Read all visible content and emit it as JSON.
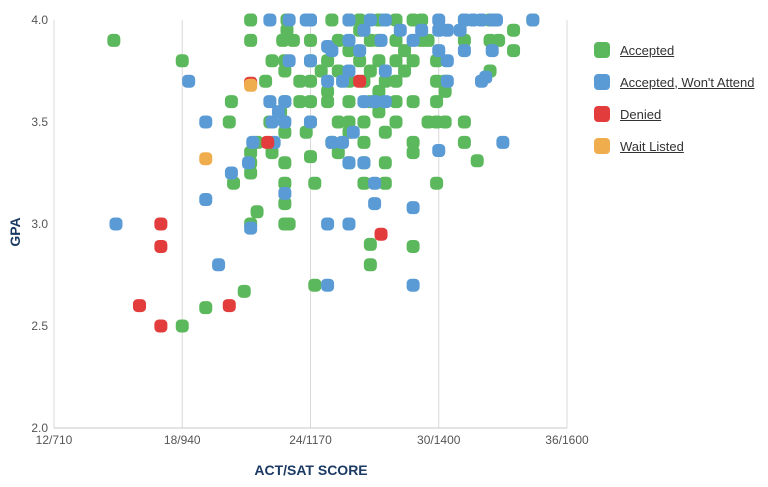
{
  "chart_data": {
    "type": "scatter",
    "title": "",
    "xlabel": "ACT/SAT SCORE",
    "ylabel": "GPA",
    "x_tick_labels": [
      "12/710",
      "18/940",
      "24/1170",
      "30/1400",
      "36/1600"
    ],
    "x_ticks_act": [
      12,
      18,
      24,
      30,
      36
    ],
    "y_tick_labels": [
      "2.0",
      "2.5",
      "3.0",
      "3.5",
      "4.0"
    ],
    "y_ticks": [
      2.0,
      2.5,
      3.0,
      3.5,
      4.0
    ],
    "xlim_act": [
      12,
      36
    ],
    "ylim": [
      2.0,
      4.0
    ],
    "grid": "vertical",
    "legend_position": "right",
    "series": [
      {
        "name": "Accepted",
        "color": "#5cb85c",
        "points": [
          [
            14.8,
            3.9
          ],
          [
            18,
            3.8
          ],
          [
            18,
            2.5
          ],
          [
            19.1,
            2.59
          ],
          [
            20.3,
            3.6
          ],
          [
            20.2,
            3.5
          ],
          [
            20.4,
            3.2
          ],
          [
            20.9,
            2.67
          ],
          [
            21.2,
            3.35
          ],
          [
            21.2,
            3.3
          ],
          [
            21.2,
            3.0
          ],
          [
            21.5,
            3.06
          ],
          [
            21.2,
            3.9
          ],
          [
            21.2,
            4.0
          ],
          [
            21.5,
            3.4
          ],
          [
            21.2,
            3.25
          ],
          [
            21.9,
            3.7
          ],
          [
            22.2,
            3.8
          ],
          [
            22.1,
            3.5
          ],
          [
            22.2,
            3.35
          ],
          [
            22.6,
            3.55
          ],
          [
            22.7,
            3.9
          ],
          [
            22.9,
            4.0
          ],
          [
            22.8,
            3.8
          ],
          [
            22.8,
            3.75
          ],
          [
            22.8,
            3.6
          ],
          [
            22.8,
            3.45
          ],
          [
            22.8,
            3.3
          ],
          [
            22.8,
            3.2
          ],
          [
            22.8,
            3.1
          ],
          [
            22.8,
            3.0
          ],
          [
            23.0,
            3.0
          ],
          [
            22.9,
            3.95
          ],
          [
            23.2,
            3.9
          ],
          [
            23.5,
            3.7
          ],
          [
            23.5,
            3.6
          ],
          [
            23.8,
            3.45
          ],
          [
            24.0,
            4.0
          ],
          [
            24.0,
            3.9
          ],
          [
            24.0,
            3.8
          ],
          [
            24.0,
            3.7
          ],
          [
            24.0,
            3.6
          ],
          [
            24.0,
            3.5
          ],
          [
            24.0,
            3.33
          ],
          [
            24.2,
            3.2
          ],
          [
            24.2,
            2.7
          ],
          [
            24.5,
            3.75
          ],
          [
            24.8,
            3.8
          ],
          [
            24.8,
            3.65
          ],
          [
            24.8,
            3.6
          ],
          [
            25.0,
            3.4
          ],
          [
            25.0,
            4.0
          ],
          [
            25.3,
            3.9
          ],
          [
            25.3,
            3.75
          ],
          [
            25.3,
            3.5
          ],
          [
            25.3,
            3.35
          ],
          [
            25.8,
            4.0
          ],
          [
            25.8,
            3.85
          ],
          [
            25.8,
            3.7
          ],
          [
            25.8,
            3.6
          ],
          [
            25.8,
            3.5
          ],
          [
            25.8,
            3.45
          ],
          [
            25.8,
            3.3
          ],
          [
            26.3,
            4.0
          ],
          [
            26.3,
            3.95
          ],
          [
            26.3,
            3.8
          ],
          [
            26.5,
            3.7
          ],
          [
            26.5,
            3.5
          ],
          [
            26.5,
            3.4
          ],
          [
            26.5,
            3.3
          ],
          [
            26.5,
            3.2
          ],
          [
            26.8,
            3.9
          ],
          [
            26.8,
            3.75
          ],
          [
            26.8,
            3.6
          ],
          [
            26.8,
            2.9
          ],
          [
            26.8,
            2.8
          ],
          [
            27.2,
            4.0
          ],
          [
            27.2,
            3.9
          ],
          [
            27.2,
            3.8
          ],
          [
            27.2,
            3.65
          ],
          [
            27.2,
            3.55
          ],
          [
            27.5,
            3.7
          ],
          [
            27.5,
            3.45
          ],
          [
            27.5,
            3.3
          ],
          [
            27.5,
            3.2
          ],
          [
            28.0,
            4.0
          ],
          [
            28.0,
            3.9
          ],
          [
            28.0,
            3.8
          ],
          [
            28.0,
            3.7
          ],
          [
            28.0,
            3.6
          ],
          [
            28.0,
            3.5
          ],
          [
            28.4,
            3.85
          ],
          [
            28.4,
            3.75
          ],
          [
            28.8,
            4.0
          ],
          [
            28.8,
            3.8
          ],
          [
            28.8,
            3.6
          ],
          [
            28.8,
            3.4
          ],
          [
            28.8,
            3.35
          ],
          [
            28.8,
            2.89
          ],
          [
            29.2,
            4.0
          ],
          [
            29.2,
            3.9
          ],
          [
            29.5,
            3.9
          ],
          [
            29.5,
            3.5
          ],
          [
            29.9,
            3.8
          ],
          [
            29.9,
            3.7
          ],
          [
            29.9,
            3.6
          ],
          [
            29.9,
            3.5
          ],
          [
            29.9,
            3.2
          ],
          [
            30.3,
            3.7
          ],
          [
            30.3,
            3.5
          ],
          [
            30.3,
            3.65
          ],
          [
            31.2,
            4.0
          ],
          [
            31.2,
            3.9
          ],
          [
            31.2,
            3.5
          ],
          [
            31.2,
            3.4
          ],
          [
            31.8,
            3.31
          ],
          [
            32.4,
            4.0
          ],
          [
            32.4,
            3.9
          ],
          [
            32.4,
            3.75
          ],
          [
            33.5,
            3.95
          ],
          [
            33.5,
            3.85
          ],
          [
            34.4,
            4.0
          ],
          [
            32.8,
            3.9
          ]
        ]
      },
      {
        "name": "Accepted, Won't Attend",
        "color": "#5b9bd5",
        "points": [
          [
            14.9,
            3.0
          ],
          [
            18.3,
            3.7
          ],
          [
            19.1,
            3.5
          ],
          [
            19.1,
            3.12
          ],
          [
            19.7,
            2.8
          ],
          [
            20.3,
            3.25
          ],
          [
            21.1,
            3.3
          ],
          [
            21.2,
            2.98
          ],
          [
            21.3,
            3.4
          ],
          [
            22.1,
            4.0
          ],
          [
            22.1,
            3.6
          ],
          [
            22.3,
            3.4
          ],
          [
            22.2,
            3.5
          ],
          [
            22.5,
            3.55
          ],
          [
            22.8,
            3.6
          ],
          [
            22.8,
            3.5
          ],
          [
            22.8,
            3.15
          ],
          [
            23.0,
            4.0
          ],
          [
            23.0,
            3.8
          ],
          [
            23.8,
            4.0
          ],
          [
            24.0,
            4.0
          ],
          [
            24.0,
            3.8
          ],
          [
            24.0,
            3.5
          ],
          [
            24.8,
            3.87
          ],
          [
            24.8,
            3.7
          ],
          [
            24.8,
            3.0
          ],
          [
            24.8,
            2.7
          ],
          [
            25.0,
            3.85
          ],
          [
            25.0,
            3.4
          ],
          [
            25.5,
            3.7
          ],
          [
            25.5,
            3.4
          ],
          [
            25.8,
            4.0
          ],
          [
            25.8,
            3.9
          ],
          [
            25.8,
            3.75
          ],
          [
            25.8,
            3.3
          ],
          [
            25.8,
            3.0
          ],
          [
            26.0,
            3.45
          ],
          [
            26.3,
            3.85
          ],
          [
            26.5,
            3.95
          ],
          [
            26.5,
            3.6
          ],
          [
            26.5,
            3.3
          ],
          [
            26.8,
            4.0
          ],
          [
            27.0,
            3.6
          ],
          [
            27.0,
            3.2
          ],
          [
            27.0,
            3.1
          ],
          [
            27.3,
            3.9
          ],
          [
            27.5,
            4.0
          ],
          [
            27.5,
            3.75
          ],
          [
            27.5,
            3.6
          ],
          [
            28.2,
            3.95
          ],
          [
            28.8,
            3.9
          ],
          [
            28.8,
            3.08
          ],
          [
            28.8,
            2.7
          ],
          [
            29.2,
            3.95
          ],
          [
            30.0,
            4.0
          ],
          [
            30.0,
            3.95
          ],
          [
            30.0,
            3.85
          ],
          [
            30.0,
            3.36
          ],
          [
            30.4,
            3.95
          ],
          [
            30.4,
            3.8
          ],
          [
            30.4,
            3.7
          ],
          [
            31.0,
            3.95
          ],
          [
            31.2,
            3.85
          ],
          [
            31.2,
            4.0
          ],
          [
            31.6,
            4.0
          ],
          [
            32.0,
            4.0
          ],
          [
            32.0,
            3.7
          ],
          [
            32.2,
            3.72
          ],
          [
            32.5,
            4.0
          ],
          [
            32.5,
            3.85
          ],
          [
            33.0,
            3.4
          ],
          [
            34.4,
            4.0
          ],
          [
            32.7,
            4.0
          ]
        ]
      },
      {
        "name": "Denied",
        "color": "#e23c3c",
        "points": [
          [
            16.0,
            2.6
          ],
          [
            17.0,
            3.0
          ],
          [
            17.0,
            2.89
          ],
          [
            17.0,
            2.5
          ],
          [
            20.2,
            2.6
          ],
          [
            21.2,
            3.69
          ],
          [
            22.0,
            3.4
          ],
          [
            26.3,
            3.7
          ],
          [
            27.3,
            2.95
          ]
        ]
      },
      {
        "name": "Wait Listed",
        "color": "#f0ad4e",
        "points": [
          [
            19.1,
            3.32
          ],
          [
            21.2,
            3.68
          ]
        ]
      }
    ]
  }
}
